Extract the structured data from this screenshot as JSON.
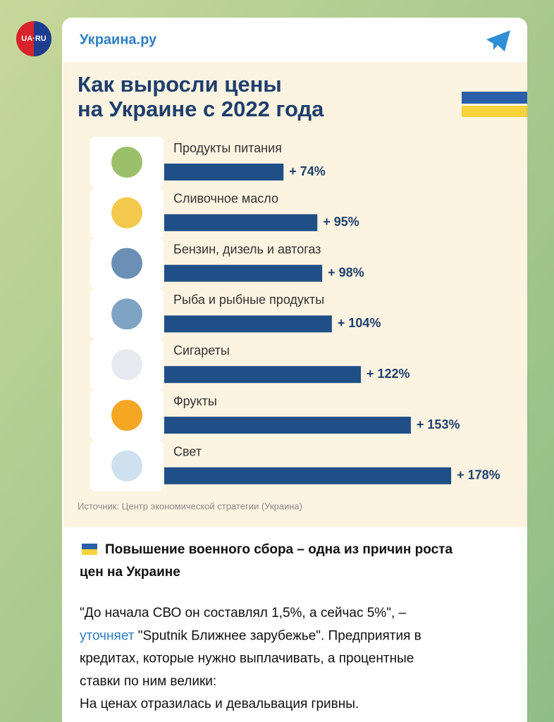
{
  "channel": "Украина.ру",
  "avatar_label": "UA·RU",
  "chart_data": {
    "type": "bar",
    "title": [
      "Как выросли цены",
      "на Украине с 2022 года"
    ],
    "categories": [
      "Продукты питания",
      "Сливочное масло",
      "Бензин, дизель и автогаз",
      "Рыба и рыбные продукты",
      "Сигареты",
      "Фрукты",
      "Свет"
    ],
    "values": [
      74,
      95,
      98,
      104,
      122,
      153,
      178
    ],
    "value_labels": [
      "+ 74%",
      "+ 95%",
      "+ 98%",
      "+ 104%",
      "+ 122%",
      "+ 153%",
      "+ 178%"
    ],
    "color": "#1f4f86",
    "source": "Источник: Центр экономической стратегии (Украина)"
  },
  "message": {
    "headline": [
      "Повышение военного сбора – одна из причин роста",
      "цен на Украине"
    ],
    "body": [
      [
        {
          "text": "\"До начала СВО он составлял 1,5%, а сейчас 5%\", –",
          "link": false
        }
      ],
      [
        {
          "text": "уточняет",
          "link": true
        },
        {
          "text": " \"Sputnik Ближнее зарубежье\". Предприятия в",
          "link": false
        }
      ],
      [
        {
          "text": "кредитах, которые нужно выплачивать, а процентные",
          "link": false
        }
      ],
      [
        {
          "text": "ставки по ним велики:",
          "link": false
        }
      ],
      [
        {
          "text": "На ценах отразилась и девальвация гривны.",
          "link": false
        }
      ]
    ]
  }
}
